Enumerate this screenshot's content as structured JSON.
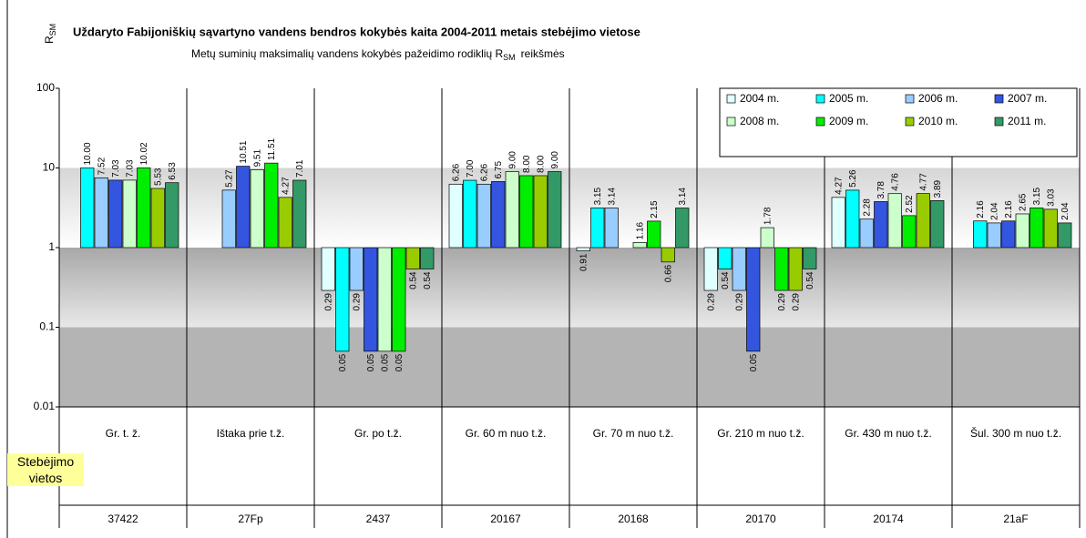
{
  "chart_data": {
    "type": "bar",
    "title": "Uždaryto Fabijoniškių sąvartyno vandens bendros kokybės kaita 2004-2011 metais stebėjimo vietose",
    "subtitle": {
      "text": "Metų suminių maksimalių vandens kokybės pažeidimo rodiklių R",
      "sub": "SM",
      "after": "reikšmės"
    },
    "y_label": {
      "text": "R",
      "sub": "SM"
    },
    "row_label": "Stebėjimo vietos",
    "categories": [
      "Gr. t. ž.",
      "Ištaka prie t.ž.",
      "Gr. po t.ž.",
      "Gr. 60 m nuo t.ž.",
      "Gr. 70 m nuo t.ž.",
      "Gr. 210 m nuo t.ž.",
      "Gr. 430 m nuo t.ž.",
      "Šul. 300 m nuo t.ž."
    ],
    "codes": [
      "37422",
      "27Fp",
      "2437",
      "20167",
      "20168",
      "20170",
      "20174",
      "21aF"
    ],
    "log_scale": true,
    "base": 1,
    "ylim": [
      0.01,
      100
    ],
    "yticks": [
      0.01,
      0.1,
      1,
      10,
      100
    ],
    "legend": "top-right",
    "series": [
      {
        "name": "2004 m.",
        "color": "#e0ffff",
        "values": [
          null,
          null,
          0.29,
          6.26,
          0.91,
          0.29,
          4.27,
          null
        ],
        "value_labels": [
          null,
          null,
          "0.29",
          "6.26",
          "0.91",
          "0.29",
          "4.27",
          null
        ]
      },
      {
        "name": "2005 m.",
        "color": "#00ffff",
        "values": [
          10,
          null,
          0.05,
          7,
          3.15,
          0.54,
          5.26,
          2.16
        ],
        "value_labels": [
          "10.00",
          null,
          "0.05",
          "7.00",
          "3.15",
          "0.54",
          "5.26",
          "2.16"
        ]
      },
      {
        "name": "2006 m.",
        "color": "#99ccff",
        "values": [
          7.52,
          5.27,
          0.29,
          6.26,
          3.14,
          0.29,
          2.28,
          2.04
        ],
        "value_labels": [
          "7.52",
          "5.27",
          "0.29",
          "6.26",
          "3.14",
          "0.29",
          "2.28",
          "2.04"
        ]
      },
      {
        "name": "2007 m.",
        "color": "#3355e0",
        "values": [
          7.03,
          10.51,
          0.05,
          6.75,
          null,
          0.05,
          3.78,
          2.16
        ],
        "value_labels": [
          "7.03",
          "10.51",
          "0.05",
          "6.75",
          null,
          "0.05",
          "3.78",
          "2.16"
        ]
      },
      {
        "name": "2008 m.",
        "color": "#ccffcc",
        "values": [
          7.03,
          9.51,
          0.05,
          9,
          1.16,
          1.78,
          4.76,
          2.65
        ],
        "value_labels": [
          "7.03",
          "9.51",
          "0.05",
          "9.00",
          "1.16",
          "1.78",
          "4.76",
          "2.65"
        ]
      },
      {
        "name": "2009 m.",
        "color": "#00ee00",
        "values": [
          10.02,
          11.51,
          0.05,
          8,
          2.15,
          0.29,
          2.52,
          3.15
        ],
        "value_labels": [
          "10.02",
          "11.51",
          "0.05",
          "8.00",
          "2.15",
          "0.29",
          "2.52",
          "3.15"
        ]
      },
      {
        "name": "2010 m.",
        "color": "#99cc00",
        "values": [
          5.53,
          4.27,
          0.54,
          8,
          0.66,
          0.29,
          4.77,
          3.03
        ],
        "value_labels": [
          "5.53",
          "4.27",
          "0.54",
          "8.00",
          "0.66",
          "0.29",
          "4.77",
          "3.03"
        ]
      },
      {
        "name": "2011 m.",
        "color": "#339966",
        "values": [
          6.53,
          7.01,
          0.54,
          9,
          3.14,
          0.54,
          3.89,
          2.04
        ],
        "value_labels": [
          "6.53",
          "7.01",
          "0.54",
          "9.00",
          "3.14",
          "0.54",
          "3.89",
          "2.04"
        ]
      }
    ]
  }
}
